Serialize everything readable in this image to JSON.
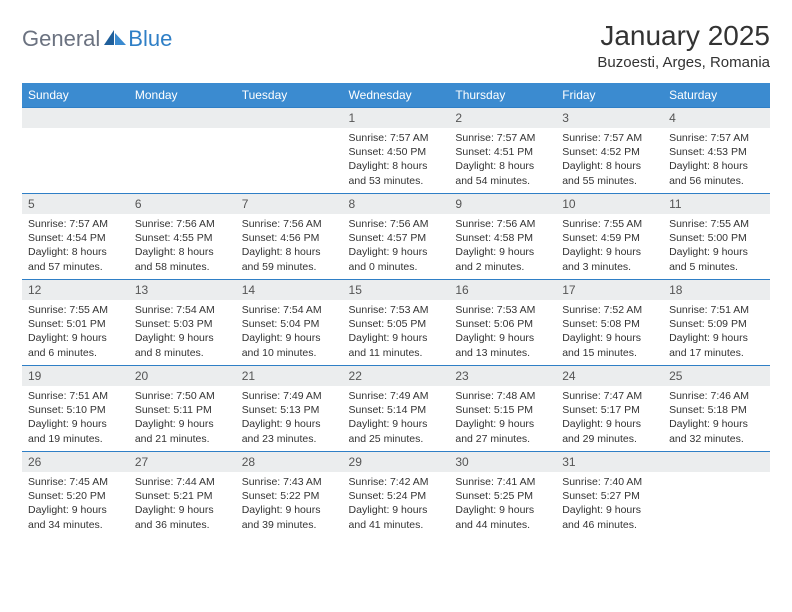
{
  "logo": {
    "general": "General",
    "blue": "Blue"
  },
  "title": "January 2025",
  "location": "Buzoesti, Arges, Romania",
  "colors": {
    "header_bg": "#3b8bd0",
    "header_text": "#ffffff",
    "row_border": "#2f7fc6",
    "daynum_bg": "#ebedee",
    "logo_blue": "#2f7fc6",
    "logo_gray": "#6b7280"
  },
  "weekdays": [
    "Sunday",
    "Monday",
    "Tuesday",
    "Wednesday",
    "Thursday",
    "Friday",
    "Saturday"
  ],
  "weeks": [
    [
      {
        "empty": true
      },
      {
        "empty": true
      },
      {
        "empty": true
      },
      {
        "day": "1",
        "sunrise": "Sunrise: 7:57 AM",
        "sunset": "Sunset: 4:50 PM",
        "daylight1": "Daylight: 8 hours",
        "daylight2": "and 53 minutes."
      },
      {
        "day": "2",
        "sunrise": "Sunrise: 7:57 AM",
        "sunset": "Sunset: 4:51 PM",
        "daylight1": "Daylight: 8 hours",
        "daylight2": "and 54 minutes."
      },
      {
        "day": "3",
        "sunrise": "Sunrise: 7:57 AM",
        "sunset": "Sunset: 4:52 PM",
        "daylight1": "Daylight: 8 hours",
        "daylight2": "and 55 minutes."
      },
      {
        "day": "4",
        "sunrise": "Sunrise: 7:57 AM",
        "sunset": "Sunset: 4:53 PM",
        "daylight1": "Daylight: 8 hours",
        "daylight2": "and 56 minutes."
      }
    ],
    [
      {
        "day": "5",
        "sunrise": "Sunrise: 7:57 AM",
        "sunset": "Sunset: 4:54 PM",
        "daylight1": "Daylight: 8 hours",
        "daylight2": "and 57 minutes."
      },
      {
        "day": "6",
        "sunrise": "Sunrise: 7:56 AM",
        "sunset": "Sunset: 4:55 PM",
        "daylight1": "Daylight: 8 hours",
        "daylight2": "and 58 minutes."
      },
      {
        "day": "7",
        "sunrise": "Sunrise: 7:56 AM",
        "sunset": "Sunset: 4:56 PM",
        "daylight1": "Daylight: 8 hours",
        "daylight2": "and 59 minutes."
      },
      {
        "day": "8",
        "sunrise": "Sunrise: 7:56 AM",
        "sunset": "Sunset: 4:57 PM",
        "daylight1": "Daylight: 9 hours",
        "daylight2": "and 0 minutes."
      },
      {
        "day": "9",
        "sunrise": "Sunrise: 7:56 AM",
        "sunset": "Sunset: 4:58 PM",
        "daylight1": "Daylight: 9 hours",
        "daylight2": "and 2 minutes."
      },
      {
        "day": "10",
        "sunrise": "Sunrise: 7:55 AM",
        "sunset": "Sunset: 4:59 PM",
        "daylight1": "Daylight: 9 hours",
        "daylight2": "and 3 minutes."
      },
      {
        "day": "11",
        "sunrise": "Sunrise: 7:55 AM",
        "sunset": "Sunset: 5:00 PM",
        "daylight1": "Daylight: 9 hours",
        "daylight2": "and 5 minutes."
      }
    ],
    [
      {
        "day": "12",
        "sunrise": "Sunrise: 7:55 AM",
        "sunset": "Sunset: 5:01 PM",
        "daylight1": "Daylight: 9 hours",
        "daylight2": "and 6 minutes."
      },
      {
        "day": "13",
        "sunrise": "Sunrise: 7:54 AM",
        "sunset": "Sunset: 5:03 PM",
        "daylight1": "Daylight: 9 hours",
        "daylight2": "and 8 minutes."
      },
      {
        "day": "14",
        "sunrise": "Sunrise: 7:54 AM",
        "sunset": "Sunset: 5:04 PM",
        "daylight1": "Daylight: 9 hours",
        "daylight2": "and 10 minutes."
      },
      {
        "day": "15",
        "sunrise": "Sunrise: 7:53 AM",
        "sunset": "Sunset: 5:05 PM",
        "daylight1": "Daylight: 9 hours",
        "daylight2": "and 11 minutes."
      },
      {
        "day": "16",
        "sunrise": "Sunrise: 7:53 AM",
        "sunset": "Sunset: 5:06 PM",
        "daylight1": "Daylight: 9 hours",
        "daylight2": "and 13 minutes."
      },
      {
        "day": "17",
        "sunrise": "Sunrise: 7:52 AM",
        "sunset": "Sunset: 5:08 PM",
        "daylight1": "Daylight: 9 hours",
        "daylight2": "and 15 minutes."
      },
      {
        "day": "18",
        "sunrise": "Sunrise: 7:51 AM",
        "sunset": "Sunset: 5:09 PM",
        "daylight1": "Daylight: 9 hours",
        "daylight2": "and 17 minutes."
      }
    ],
    [
      {
        "day": "19",
        "sunrise": "Sunrise: 7:51 AM",
        "sunset": "Sunset: 5:10 PM",
        "daylight1": "Daylight: 9 hours",
        "daylight2": "and 19 minutes."
      },
      {
        "day": "20",
        "sunrise": "Sunrise: 7:50 AM",
        "sunset": "Sunset: 5:11 PM",
        "daylight1": "Daylight: 9 hours",
        "daylight2": "and 21 minutes."
      },
      {
        "day": "21",
        "sunrise": "Sunrise: 7:49 AM",
        "sunset": "Sunset: 5:13 PM",
        "daylight1": "Daylight: 9 hours",
        "daylight2": "and 23 minutes."
      },
      {
        "day": "22",
        "sunrise": "Sunrise: 7:49 AM",
        "sunset": "Sunset: 5:14 PM",
        "daylight1": "Daylight: 9 hours",
        "daylight2": "and 25 minutes."
      },
      {
        "day": "23",
        "sunrise": "Sunrise: 7:48 AM",
        "sunset": "Sunset: 5:15 PM",
        "daylight1": "Daylight: 9 hours",
        "daylight2": "and 27 minutes."
      },
      {
        "day": "24",
        "sunrise": "Sunrise: 7:47 AM",
        "sunset": "Sunset: 5:17 PM",
        "daylight1": "Daylight: 9 hours",
        "daylight2": "and 29 minutes."
      },
      {
        "day": "25",
        "sunrise": "Sunrise: 7:46 AM",
        "sunset": "Sunset: 5:18 PM",
        "daylight1": "Daylight: 9 hours",
        "daylight2": "and 32 minutes."
      }
    ],
    [
      {
        "day": "26",
        "sunrise": "Sunrise: 7:45 AM",
        "sunset": "Sunset: 5:20 PM",
        "daylight1": "Daylight: 9 hours",
        "daylight2": "and 34 minutes."
      },
      {
        "day": "27",
        "sunrise": "Sunrise: 7:44 AM",
        "sunset": "Sunset: 5:21 PM",
        "daylight1": "Daylight: 9 hours",
        "daylight2": "and 36 minutes."
      },
      {
        "day": "28",
        "sunrise": "Sunrise: 7:43 AM",
        "sunset": "Sunset: 5:22 PM",
        "daylight1": "Daylight: 9 hours",
        "daylight2": "and 39 minutes."
      },
      {
        "day": "29",
        "sunrise": "Sunrise: 7:42 AM",
        "sunset": "Sunset: 5:24 PM",
        "daylight1": "Daylight: 9 hours",
        "daylight2": "and 41 minutes."
      },
      {
        "day": "30",
        "sunrise": "Sunrise: 7:41 AM",
        "sunset": "Sunset: 5:25 PM",
        "daylight1": "Daylight: 9 hours",
        "daylight2": "and 44 minutes."
      },
      {
        "day": "31",
        "sunrise": "Sunrise: 7:40 AM",
        "sunset": "Sunset: 5:27 PM",
        "daylight1": "Daylight: 9 hours",
        "daylight2": "and 46 minutes."
      },
      {
        "empty": true
      }
    ]
  ]
}
